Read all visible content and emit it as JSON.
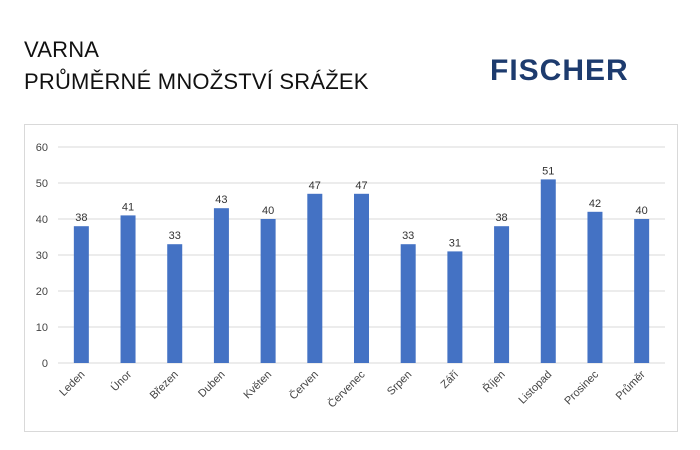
{
  "header": {
    "title_line1": "VARNA",
    "title_line2": "PRŮMĚRNÉ MNOŽSTVÍ SRÁŽEK",
    "logo_text": "FISCHER",
    "logo_color": "#1d3b6e"
  },
  "chart_data": {
    "type": "bar",
    "categories": [
      "Leden",
      "Únor",
      "Březen",
      "Duben",
      "Květen",
      "Červen",
      "Červenec",
      "Srpen",
      "Září",
      "Říjen",
      "Listopad",
      "Prosinec",
      "Průměr"
    ],
    "values": [
      38,
      41,
      33,
      43,
      40,
      47,
      47,
      33,
      31,
      38,
      51,
      42,
      40
    ],
    "data_labels": [
      "38",
      "41",
      "33",
      "43",
      "40",
      "47",
      "47",
      "33",
      "31",
      "38",
      "51",
      "42",
      "40"
    ],
    "ylim": [
      0,
      60
    ],
    "yticks": [
      0,
      10,
      20,
      30,
      40,
      50,
      60
    ],
    "ytick_labels": [
      "0",
      "10",
      "20",
      "30",
      "40",
      "50",
      "60"
    ],
    "grid": true,
    "bar_color": "#4472c4",
    "grid_color": "#d9d9d9"
  }
}
